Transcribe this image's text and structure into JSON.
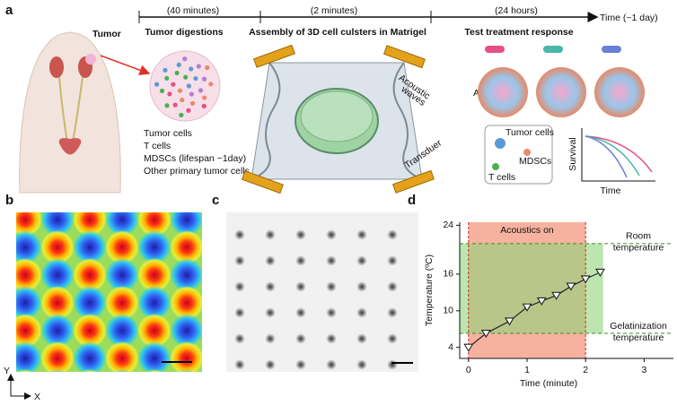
{
  "panel_labels": [
    "a",
    "b",
    "c",
    "d"
  ],
  "panel_a": {
    "steps": [
      {
        "duration": "(40 minutes)",
        "title": "Tumor digestions"
      },
      {
        "duration": "(2 minutes)",
        "title": "Assembly of 3D cell culsters in Matrigel"
      },
      {
        "duration": "(24 hours)",
        "title": "Test treatment response"
      }
    ],
    "time_label": "Time (~1 day)",
    "tumor_label": "Tumor",
    "cell_types": [
      "Tumor cells",
      "T cells",
      "MDSCs (lifespan ~1day)",
      "Other primary tumor cells"
    ],
    "acoustic_label": [
      "Acoustic",
      "waves"
    ],
    "transducer_label": "Transduer",
    "treatment_label": "APCCs",
    "interaction_labels": [
      "Tumor cells",
      "MDSCs",
      "T cells"
    ],
    "survival_y_label": "Survival",
    "survival_x_label": "Time"
  },
  "panel_b": {
    "axis_labels": [
      "Y",
      "X"
    ]
  },
  "chart_data": {
    "type": "line",
    "x_label": "Time (minute)",
    "y_label": "Temperature (ºC)",
    "x": [
      0,
      0.3,
      0.7,
      1.0,
      1.25,
      1.5,
      1.75,
      2.0,
      2.25
    ],
    "values": [
      4,
      6.3,
      8.3,
      10.6,
      11.6,
      12.5,
      14,
      15.2,
      16.3
    ],
    "color": "#222222",
    "xlim": [
      -0.15,
      3.5
    ],
    "ylim": [
      2.2,
      24.5
    ],
    "xticks": [
      0,
      1,
      2,
      3
    ],
    "yticks": [
      4,
      10,
      16,
      24
    ],
    "acoustics_on": {
      "range": [
        0,
        2
      ],
      "label": "Acoustics on",
      "color": "#f4a58e"
    },
    "temperature_band": {
      "range": [
        6.3,
        21
      ],
      "x_end": 2.3,
      "color": "#8fd47c",
      "top_label": [
        "Room",
        "temperature"
      ],
      "bottom_label": [
        "Gelatinization",
        "temperature"
      ]
    }
  }
}
